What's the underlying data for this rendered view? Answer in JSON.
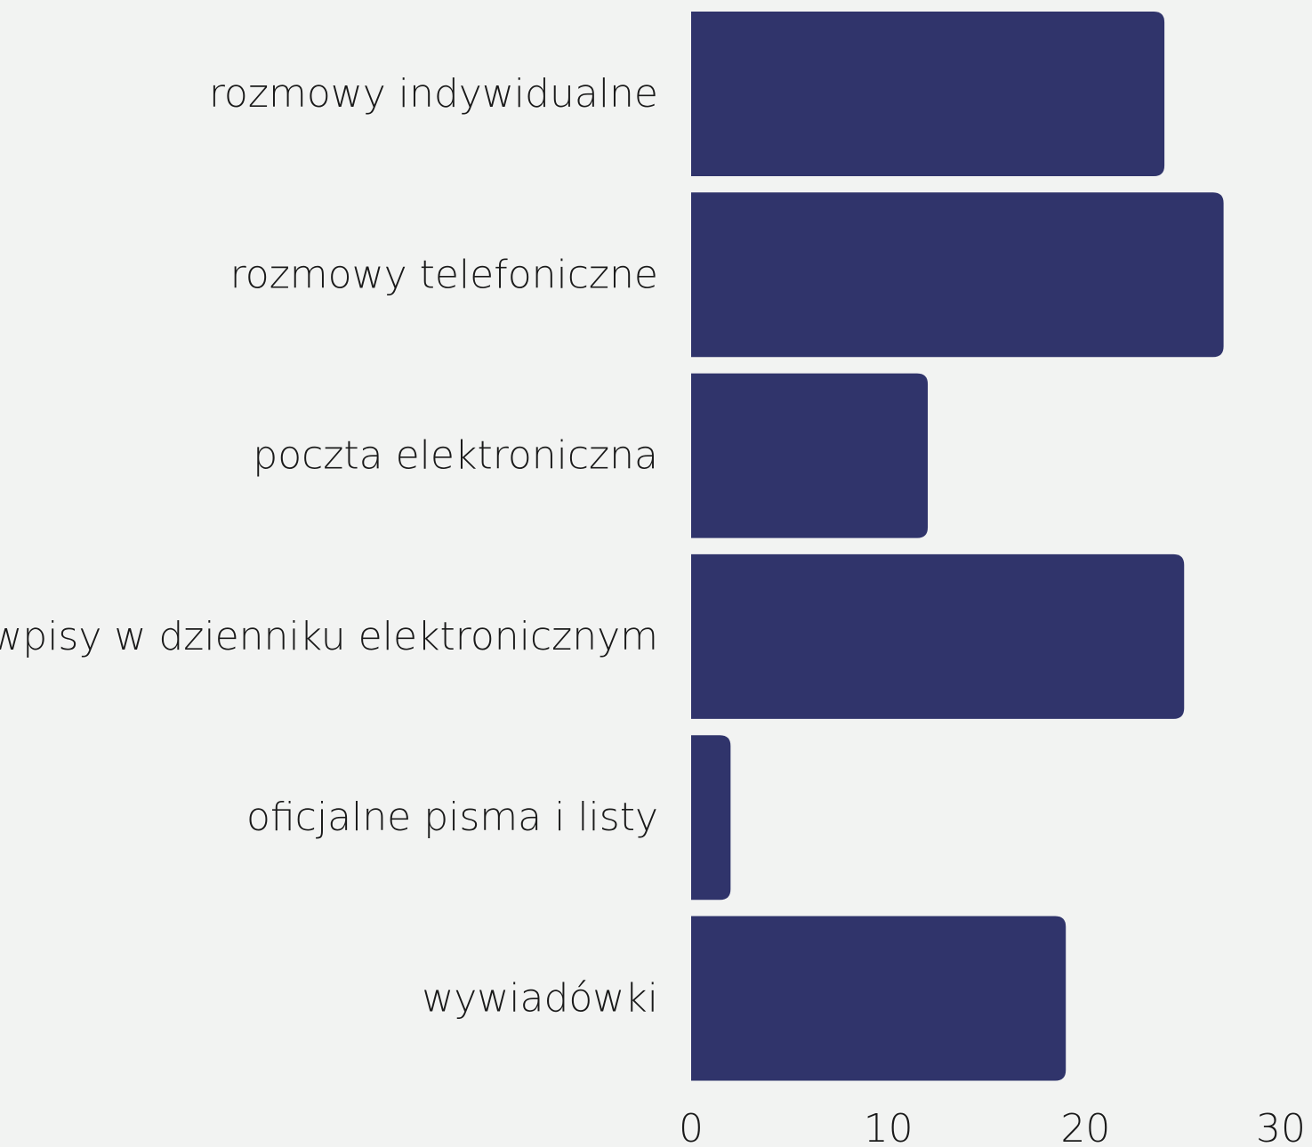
{
  "chart_data": {
    "type": "bar",
    "orientation": "horizontal",
    "categories": [
      "rozmowy indywidualne",
      "rozmowy telefoniczne",
      "poczta elektroniczna",
      "wpisy w dzienniku elektronicznym",
      "oficjalne pisma i listy",
      "wywiadówki"
    ],
    "values": [
      24,
      27,
      12,
      25,
      2,
      19
    ],
    "xlim": [
      0,
      30
    ],
    "xticks": [
      0,
      10,
      20,
      30
    ],
    "xticks_labels": [
      "0",
      "10",
      "20",
      "30"
    ],
    "title": "",
    "xlabel": "",
    "ylabel": "",
    "grid": false,
    "legend": "none",
    "bar_color": "#30346b",
    "background": "#f2f3f2"
  }
}
